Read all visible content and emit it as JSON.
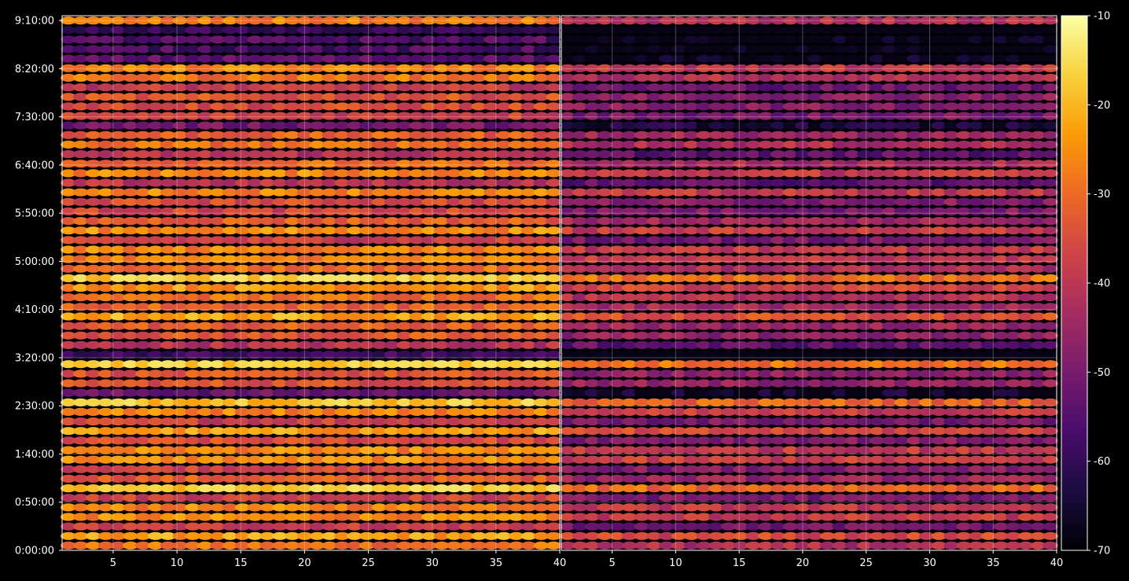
{
  "chart_data": {
    "type": "heatmap",
    "background": "#000000",
    "colormap": "inferno",
    "colormap_stops": [
      "#000004",
      "#1b0c41",
      "#4a0c6b",
      "#781c6d",
      "#a52c60",
      "#cf4446",
      "#ed6925",
      "#fb9b06",
      "#f7d13d",
      "#fcffa4"
    ],
    "grid": true,
    "x_axis_ticks": [
      "5",
      "10",
      "15",
      "20",
      "25",
      "30",
      "35",
      "40"
    ],
    "y_axis_ticks": [
      "0:00:00",
      "0:50:00",
      "1:40:00",
      "2:30:00",
      "3:20:00",
      "4:10:00",
      "5:00:00",
      "5:50:00",
      "6:40:00",
      "7:30:00",
      "8:20:00",
      "9:10:00"
    ],
    "colorbar_ticks": [
      "-10",
      "-20",
      "-30",
      "-40",
      "-50",
      "-60",
      "-70"
    ],
    "colorbar_range": [
      -70,
      -10
    ],
    "panels": [
      {
        "xlim": [
          1,
          40
        ],
        "x_ticks": [
          5,
          10,
          15,
          20,
          25,
          30,
          35,
          40
        ],
        "ylim_minutes": [
          0,
          555
        ],
        "approx_mean_value": -32,
        "approx_value_range": [
          -62,
          -14
        ]
      },
      {
        "xlim": [
          1,
          40
        ],
        "x_ticks": [
          5,
          10,
          15,
          20,
          25,
          30,
          35,
          40
        ],
        "ylim_minutes": [
          0,
          555
        ],
        "approx_mean_value": -45,
        "approx_value_range": [
          -68,
          -20
        ]
      }
    ]
  }
}
